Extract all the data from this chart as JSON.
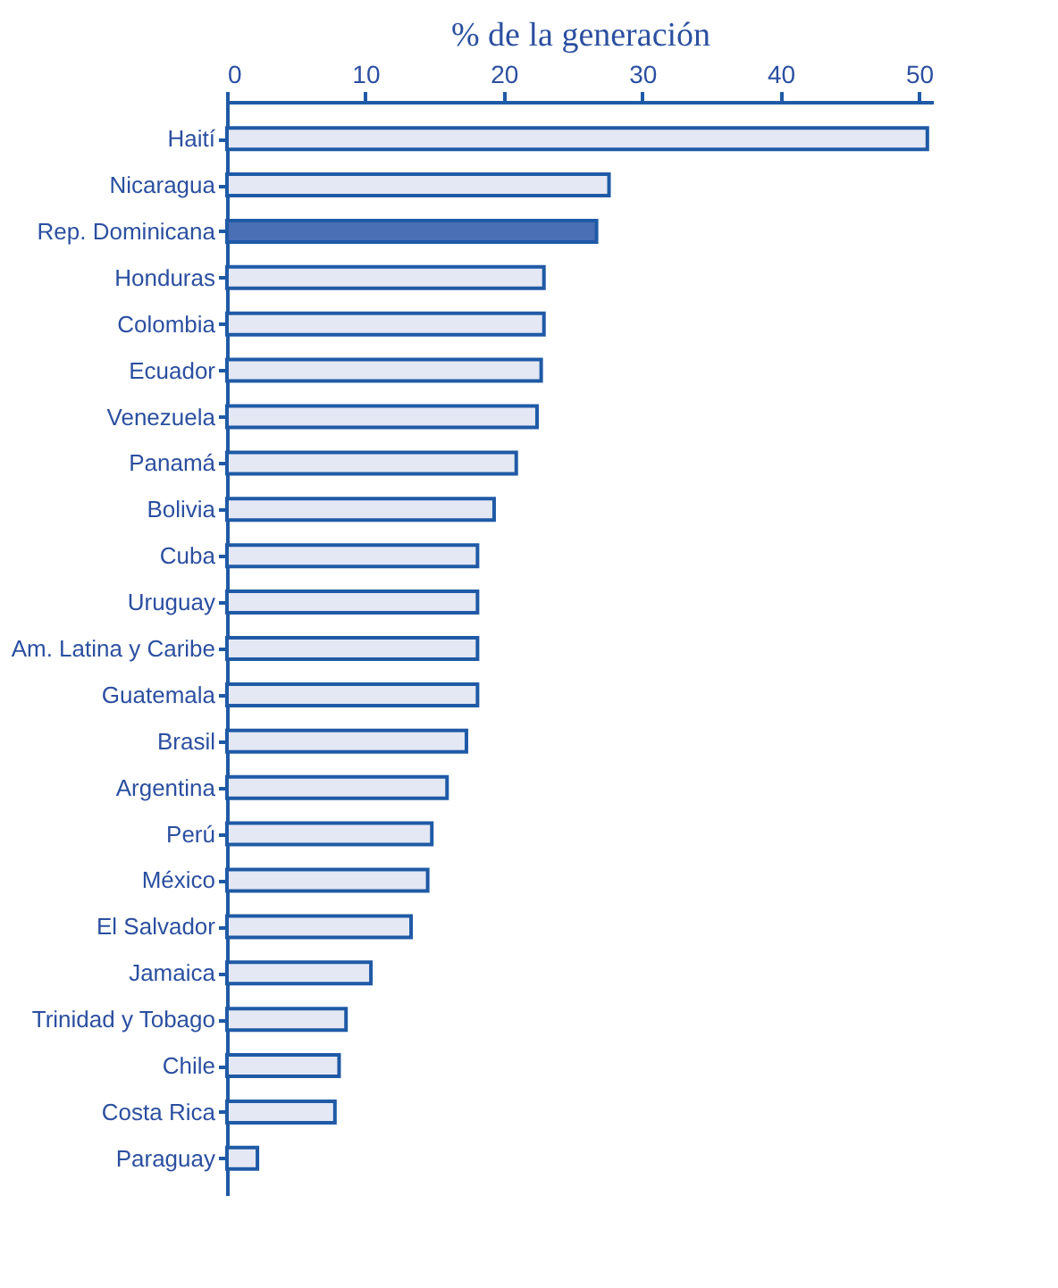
{
  "chart_data": {
    "type": "bar",
    "orientation": "horizontal",
    "xlabel": "% de la generación",
    "categories": [
      "Haití",
      "Nicaragua",
      "Rep. Dominicana",
      "Honduras",
      "Colombia",
      "Ecuador",
      "Venezuela",
      "Panamá",
      "Bolivia",
      "Cuba",
      "Uruguay",
      "Am. Latina y Caribe",
      "Guatemala",
      "Brasil",
      "Argentina",
      "Perú",
      "México",
      "El Salvador",
      "Jamaica",
      "Trinidad y Tobago",
      "Chile",
      "Costa Rica",
      "Paraguay"
    ],
    "values": [
      50.6,
      27.6,
      26.7,
      22.9,
      22.9,
      22.7,
      22.4,
      20.9,
      19.3,
      18.1,
      18.1,
      18.1,
      18.1,
      17.3,
      15.9,
      14.8,
      14.5,
      13.3,
      10.4,
      8.6,
      8.1,
      7.8,
      2.2
    ],
    "colors": [
      "#e4e8f4",
      "#e4e8f4",
      "#4a6fb5",
      "#e4e8f4",
      "#e4e8f4",
      "#e4e8f4",
      "#e4e8f4",
      "#e4e8f4",
      "#e4e8f4",
      "#e4e8f4",
      "#e4e8f4",
      "#e4e8f4",
      "#e4e8f4",
      "#e4e8f4",
      "#e4e8f4",
      "#e4e8f4",
      "#e4e8f4",
      "#e4e8f4",
      "#e4e8f4",
      "#e4e8f4",
      "#e4e8f4",
      "#e4e8f4",
      "#e4e8f4"
    ],
    "xlim": [
      0,
      51
    ],
    "xticks": [
      0,
      10,
      20,
      30,
      40,
      50
    ],
    "grid": false
  }
}
